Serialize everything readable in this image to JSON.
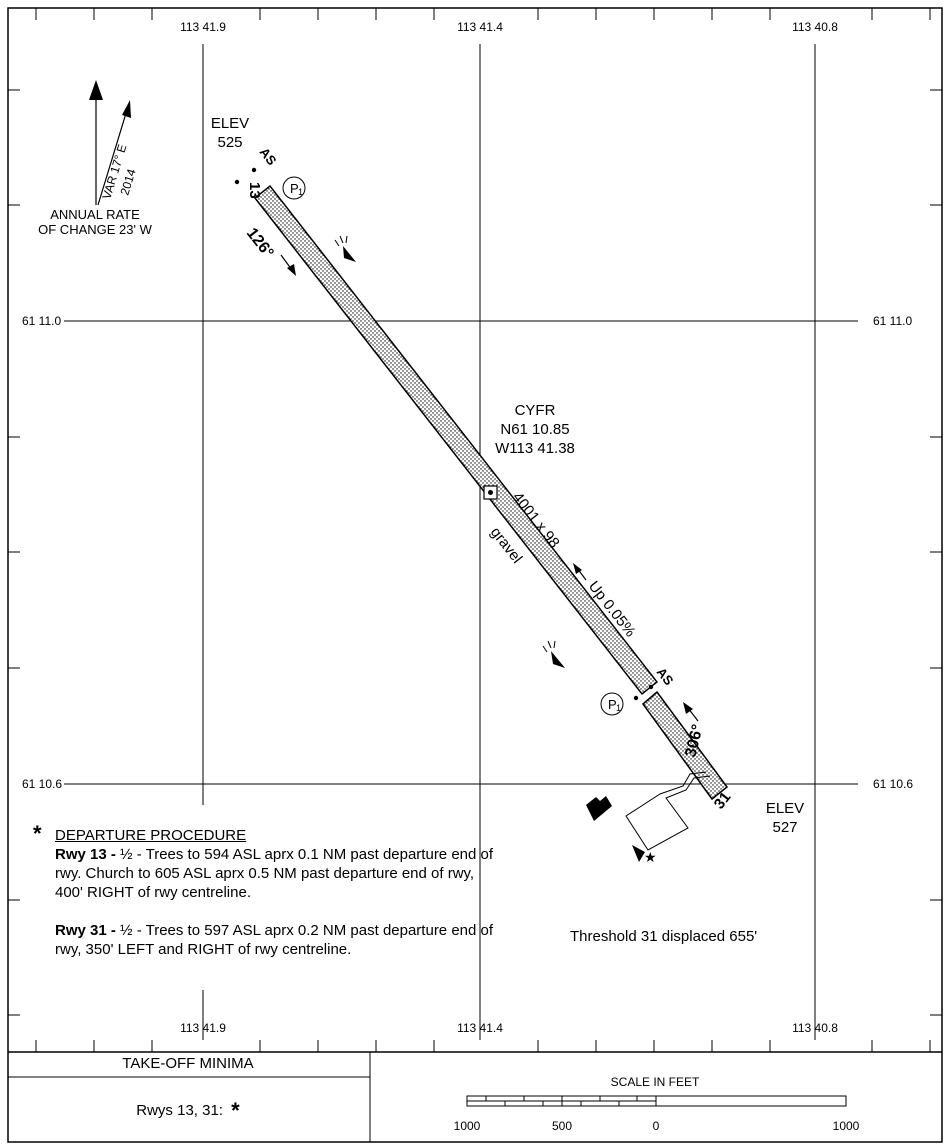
{
  "grid": {
    "top_longitudes": [
      "113 41.9",
      "113 41.4",
      "113 40.8"
    ],
    "bottom_longitudes": [
      "113 41.9",
      "113 41.4",
      "113 40.8"
    ],
    "latitudes": [
      "61 11.0",
      "61 10.6"
    ]
  },
  "variation": {
    "var_text": "VAR 17° E",
    "year": "2014",
    "annual_rate_line1": "ANNUAL RATE",
    "annual_rate_line2": "OF CHANGE 23' W"
  },
  "elev_nw": {
    "label": "ELEV",
    "value": "525"
  },
  "elev_se": {
    "label": "ELEV",
    "value": "527"
  },
  "aerodrome": {
    "ident": "CYFR",
    "lat": "N61 10.85",
    "lon": "W113 41.38"
  },
  "runway": {
    "end_13": "13",
    "end_31": "31",
    "heading_13": "126°",
    "heading_31": "306°",
    "dimensions": "4001 x 98",
    "surface": "gravel",
    "slope": "Up 0.05%",
    "as_label": "AS",
    "papi_label": "P",
    "papi_sub": "1"
  },
  "threshold_note": "Threshold 31 displaced 655'",
  "departure": {
    "star": "*",
    "title": "DEPARTURE PROCEDURE",
    "rwy13_label": "Rwy 13 -",
    "rwy13_text": "½ - Trees to 594 ASL aprx 0.1 NM past departure end of rwy. Church to 605 ASL aprx 0.5 NM past departure end of rwy, 400' RIGHT of rwy centreline.",
    "rwy31_label": "Rwy 31 -",
    "rwy31_text": "½ - Trees to 597 ASL aprx 0.2 NM past departure end of rwy, 350' LEFT and RIGHT of rwy centreline."
  },
  "minima": {
    "title": "TAKE-OFF MINIMA",
    "value": "Rwys 13, 31:",
    "star": "*"
  },
  "scale": {
    "title": "SCALE IN FEET",
    "labels": [
      "1000",
      "500",
      "0",
      "1000"
    ]
  }
}
